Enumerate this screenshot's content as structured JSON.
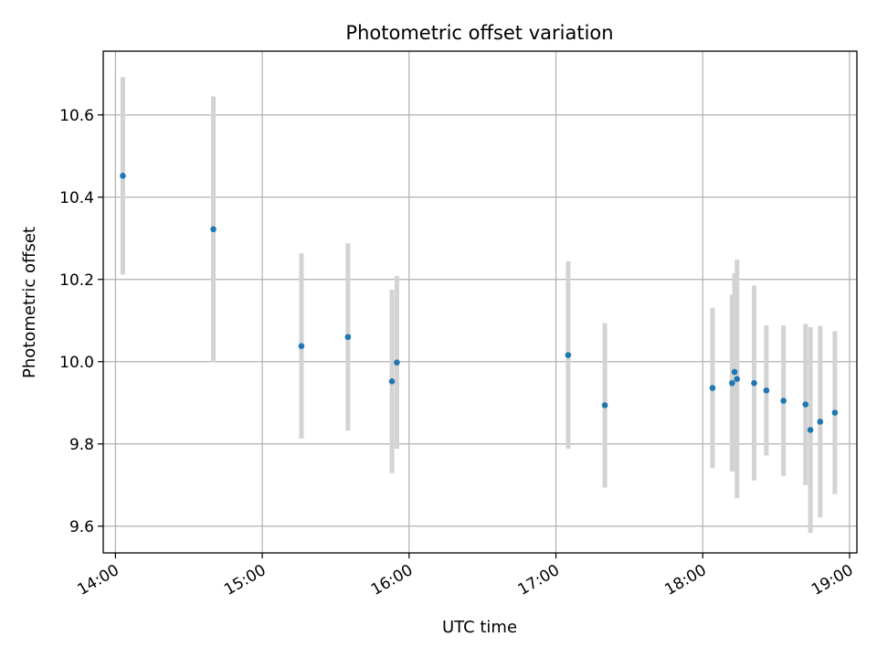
{
  "chart_data": {
    "type": "scatter",
    "title": "Photometric offset variation",
    "xlabel": "UTC time",
    "ylabel": "Photometric offset",
    "grid": true,
    "xlim": [
      "13:55",
      "19:03"
    ],
    "ylim": [
      9.535,
      10.755
    ],
    "x_ticks": [
      "14:00",
      "15:00",
      "16:00",
      "17:00",
      "18:00",
      "19:00"
    ],
    "y_ticks": [
      "9.6",
      "9.8",
      "10.0",
      "10.2",
      "10.4",
      "10.6"
    ],
    "colors": {
      "point": "#1f77b4",
      "errorbar": "#d3d3d3",
      "grid": "#b0b0b0"
    },
    "points": [
      {
        "x": "14:03",
        "y": 10.452,
        "err": 0.24
      },
      {
        "x": "14:40",
        "y": 10.322,
        "err": 0.323
      },
      {
        "x": "15:16",
        "y": 10.038,
        "err": 0.225
      },
      {
        "x": "15:35",
        "y": 10.06,
        "err": 0.228
      },
      {
        "x": "15:53",
        "y": 9.952,
        "err": 0.223
      },
      {
        "x": "15:55",
        "y": 9.998,
        "err": 0.21
      },
      {
        "x": "17:05",
        "y": 10.016,
        "err": 0.228
      },
      {
        "x": "17:20",
        "y": 9.894,
        "err": 0.2
      },
      {
        "x": "18:04",
        "y": 9.936,
        "err": 0.195
      },
      {
        "x": "18:12",
        "y": 9.948,
        "err": 0.215
      },
      {
        "x": "18:13",
        "y": 9.975,
        "err": 0.24
      },
      {
        "x": "18:14",
        "y": 9.958,
        "err": 0.29
      },
      {
        "x": "18:21",
        "y": 9.948,
        "err": 0.237
      },
      {
        "x": "18:26",
        "y": 9.93,
        "err": 0.158
      },
      {
        "x": "18:33",
        "y": 9.905,
        "err": 0.183
      },
      {
        "x": "18:42",
        "y": 9.896,
        "err": 0.196
      },
      {
        "x": "18:44",
        "y": 9.834,
        "err": 0.25
      },
      {
        "x": "18:48",
        "y": 9.854,
        "err": 0.233
      },
      {
        "x": "18:54",
        "y": 9.876,
        "err": 0.198
      }
    ]
  }
}
